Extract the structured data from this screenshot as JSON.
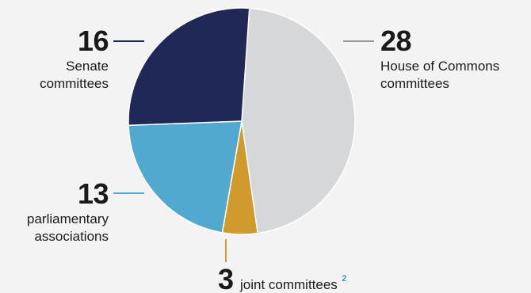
{
  "chart_data": {
    "type": "pie",
    "slices": [
      {
        "label_lines": [
          "House of Commons",
          "committees"
        ],
        "value": 28,
        "color": "#d6d7d9",
        "leader_color": "#9a9a9a"
      },
      {
        "label_lines": [
          "joint committees"
        ],
        "value": 3,
        "color": "#d09a2c",
        "leader_color": "#d09a2c",
        "footnote": "2"
      },
      {
        "label_lines": [
          "parliamentary",
          "associations"
        ],
        "value": 13,
        "color": "#52a9d0",
        "leader_color": "#52a9d0"
      },
      {
        "label_lines": [
          "Senate",
          "committees"
        ],
        "value": 16,
        "color": "#1f2857",
        "leader_color": "#1f2857"
      }
    ]
  }
}
